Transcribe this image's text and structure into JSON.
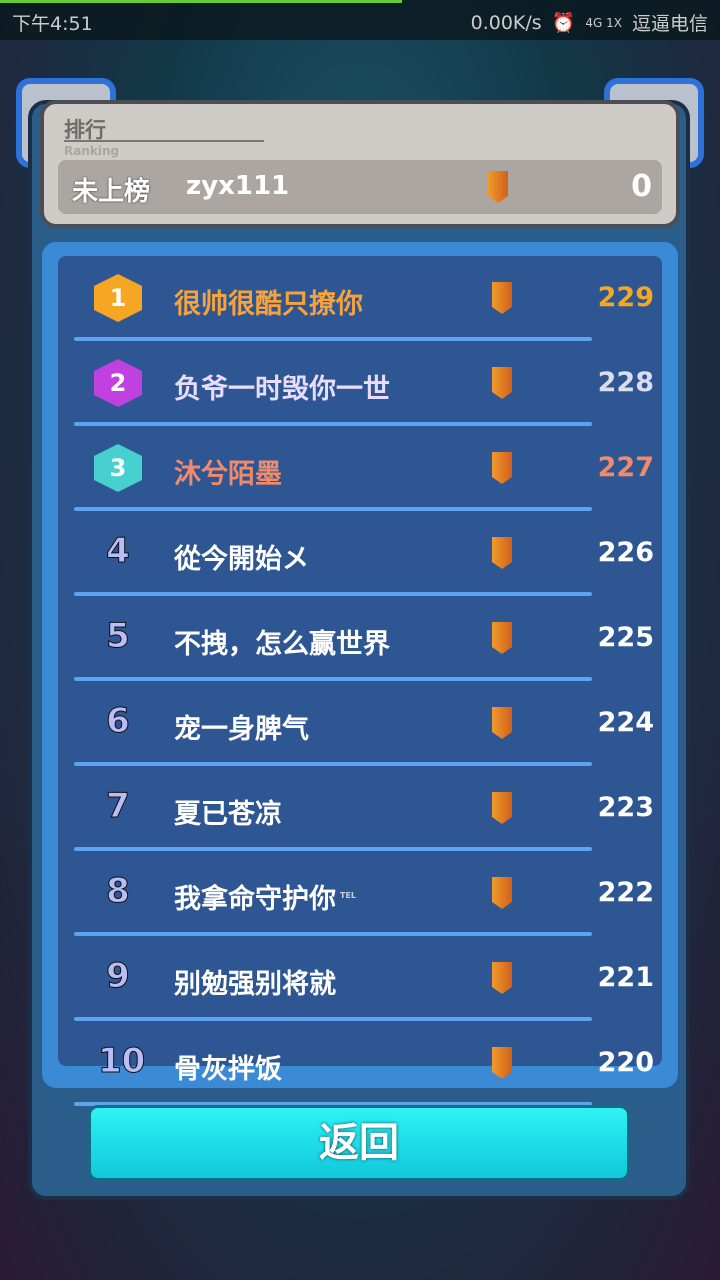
{
  "status_bar": {
    "time": "下午4:51",
    "speed": "0.00K/s",
    "network": "4G 1X",
    "carrier": "逗逼电信"
  },
  "header": {
    "title": "排行",
    "subtitle": "Ranking",
    "my_rank": "未上榜",
    "my_name": "zyx111",
    "my_score": "0"
  },
  "colors": {
    "gold": "#f5a623",
    "purple": "#c040e0",
    "teal": "#48d0d0",
    "rank1_text": "#f7a23a",
    "rank3_text": "#f08a6a"
  },
  "rows": [
    {
      "rank": "1",
      "name": "很帅很酷只撩你",
      "score": "229"
    },
    {
      "rank": "2",
      "name": "负爷一时毁你一世",
      "score": "228"
    },
    {
      "rank": "3",
      "name": "沐兮陌墨",
      "score": "227"
    },
    {
      "rank": "4",
      "name": "從今開始メ",
      "score": "226"
    },
    {
      "rank": "5",
      "name": "不拽，怎么赢世界",
      "score": "225"
    },
    {
      "rank": "6",
      "name": "宠一身脾气",
      "score": "224"
    },
    {
      "rank": "7",
      "name": "夏已苍凉",
      "score": "223"
    },
    {
      "rank": "8",
      "name": "我拿命守护你",
      "tag": "TEL",
      "score": "222"
    },
    {
      "rank": "9",
      "name": "别勉强别将就",
      "score": "221"
    },
    {
      "rank": "10",
      "name": "骨灰拌饭",
      "score": "220"
    }
  ],
  "back_label": "返回"
}
